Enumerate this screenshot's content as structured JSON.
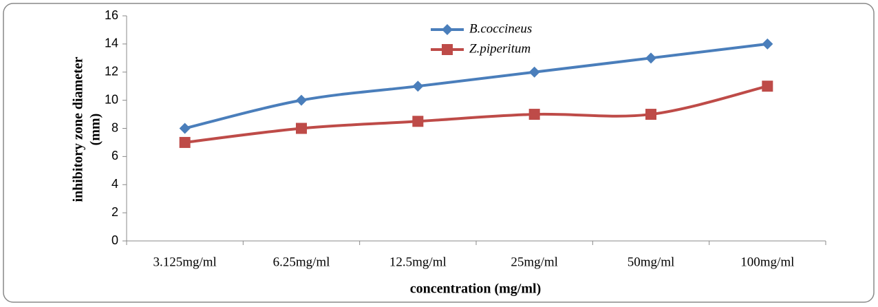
{
  "chart_data": {
    "type": "line",
    "xlabel": "concentration (mg/ml)",
    "ylabel": [
      "inhibitory zone diameter",
      "(mm)"
    ],
    "categories": [
      "3.125mg/ml",
      "6.25mg/ml",
      "12.5mg/ml",
      "25mg/ml",
      "50mg/ml",
      "100mg/ml"
    ],
    "series": [
      {
        "name": "B.coccineus",
        "color": "#4a7ebb",
        "marker": "diamond",
        "values": [
          8,
          10,
          11,
          12,
          13,
          14
        ]
      },
      {
        "name": "Z.piperitum",
        "color": "#be4b48",
        "marker": "square",
        "values": [
          7,
          8,
          8.5,
          9,
          9,
          11
        ]
      }
    ],
    "ylim": [
      0,
      16
    ],
    "yticks": [
      0,
      2,
      4,
      6,
      8,
      10,
      12,
      14,
      16
    ],
    "grid": false,
    "smooth": true
  }
}
